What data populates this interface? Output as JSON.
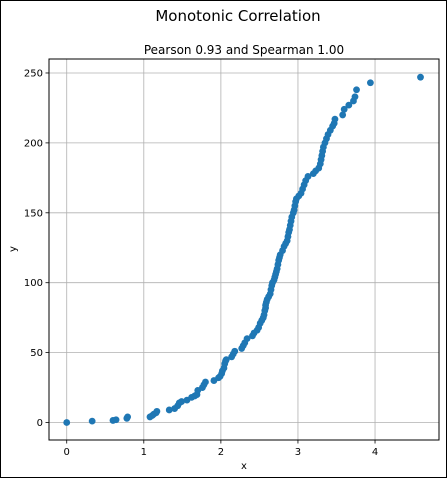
{
  "figure": {
    "suptitle": "Monotonic Correlation"
  },
  "chart_data": {
    "type": "scatter",
    "title": "Pearson 0.93 and Spearman 1.00",
    "xlabel": "x",
    "ylabel": "y",
    "xlim": [
      -0.23,
      4.83
    ],
    "ylim": [
      -12.5,
      260
    ],
    "xticks": [
      0,
      1,
      2,
      3,
      4
    ],
    "yticks": [
      0,
      50,
      100,
      150,
      200,
      250
    ],
    "grid": true,
    "marker_color": "#1f77b4",
    "points": [
      [
        0.0,
        0
      ],
      [
        0.33,
        1
      ],
      [
        0.6,
        1.5
      ],
      [
        0.64,
        2
      ],
      [
        0.78,
        3
      ],
      [
        0.79,
        4
      ],
      [
        1.08,
        4
      ],
      [
        1.11,
        5
      ],
      [
        1.13,
        6
      ],
      [
        1.16,
        7
      ],
      [
        1.17,
        8
      ],
      [
        1.33,
        9
      ],
      [
        1.4,
        10
      ],
      [
        1.44,
        12
      ],
      [
        1.46,
        14
      ],
      [
        1.49,
        15
      ],
      [
        1.56,
        16
      ],
      [
        1.62,
        18
      ],
      [
        1.66,
        19
      ],
      [
        1.69,
        20
      ],
      [
        1.7,
        23
      ],
      [
        1.76,
        25
      ],
      [
        1.78,
        27
      ],
      [
        1.8,
        29
      ],
      [
        1.91,
        30
      ],
      [
        1.97,
        32
      ],
      [
        1.99,
        33
      ],
      [
        2.01,
        35
      ],
      [
        2.02,
        37
      ],
      [
        2.04,
        39
      ],
      [
        2.05,
        42
      ],
      [
        2.06,
        44
      ],
      [
        2.07,
        45
      ],
      [
        2.14,
        47
      ],
      [
        2.16,
        49
      ],
      [
        2.18,
        51
      ],
      [
        2.27,
        53
      ],
      [
        2.29,
        55
      ],
      [
        2.31,
        57
      ],
      [
        2.34,
        60
      ],
      [
        2.41,
        62
      ],
      [
        2.43,
        64
      ],
      [
        2.47,
        66
      ],
      [
        2.49,
        68
      ],
      [
        2.51,
        71
      ],
      [
        2.53,
        73
      ],
      [
        2.55,
        75
      ],
      [
        2.56,
        77
      ],
      [
        2.57,
        80
      ],
      [
        2.58,
        82
      ],
      [
        2.58,
        84
      ],
      [
        2.59,
        86
      ],
      [
        2.6,
        88
      ],
      [
        2.62,
        90
      ],
      [
        2.64,
        92
      ],
      [
        2.65,
        95
      ],
      [
        2.66,
        98
      ],
      [
        2.67,
        100
      ],
      [
        2.69,
        102
      ],
      [
        2.7,
        104
      ],
      [
        2.71,
        106
      ],
      [
        2.72,
        108
      ],
      [
        2.73,
        110
      ],
      [
        2.74,
        113
      ],
      [
        2.75,
        116
      ],
      [
        2.76,
        118
      ],
      [
        2.77,
        120
      ],
      [
        2.8,
        123
      ],
      [
        2.82,
        126
      ],
      [
        2.84,
        128
      ],
      [
        2.86,
        130
      ],
      [
        2.87,
        133
      ],
      [
        2.88,
        136
      ],
      [
        2.89,
        138
      ],
      [
        2.9,
        141
      ],
      [
        2.91,
        144
      ],
      [
        2.92,
        147
      ],
      [
        2.94,
        150
      ],
      [
        2.95,
        152
      ],
      [
        2.96,
        155
      ],
      [
        2.97,
        158
      ],
      [
        2.98,
        160
      ],
      [
        3.01,
        162
      ],
      [
        3.04,
        164
      ],
      [
        3.06,
        167
      ],
      [
        3.08,
        170
      ],
      [
        3.1,
        173
      ],
      [
        3.13,
        176
      ],
      [
        3.2,
        178
      ],
      [
        3.23,
        180
      ],
      [
        3.27,
        182
      ],
      [
        3.29,
        185
      ],
      [
        3.3,
        188
      ],
      [
        3.31,
        191
      ],
      [
        3.32,
        194
      ],
      [
        3.33,
        197
      ],
      [
        3.35,
        200
      ],
      [
        3.37,
        203
      ],
      [
        3.39,
        206
      ],
      [
        3.42,
        209
      ],
      [
        3.45,
        212
      ],
      [
        3.47,
        214
      ],
      [
        3.48,
        217
      ],
      [
        3.58,
        220
      ],
      [
        3.6,
        224
      ],
      [
        3.66,
        227
      ],
      [
        3.72,
        230
      ],
      [
        3.74,
        233
      ],
      [
        3.76,
        238
      ],
      [
        3.94,
        243
      ],
      [
        4.59,
        247
      ]
    ]
  }
}
